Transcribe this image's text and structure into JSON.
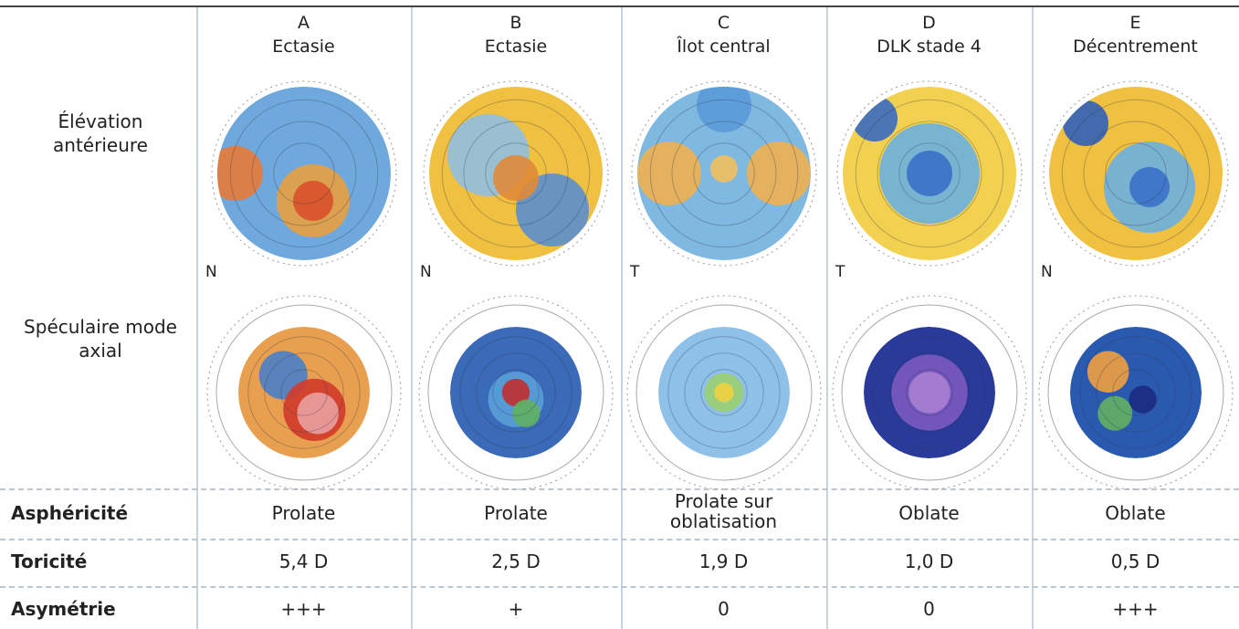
{
  "columns": [
    {
      "letter": "A",
      "title": "Ectasie"
    },
    {
      "letter": "B",
      "title": "Ectasie"
    },
    {
      "letter": "C",
      "title": "Îlot central"
    },
    {
      "letter": "D",
      "title": "DLK stade 4"
    },
    {
      "letter": "E",
      "title": "Décentrement"
    }
  ],
  "row_labels": {
    "elevation": "Élévation antérieure",
    "specular": "Spéculaire mode axial"
  },
  "orientation": [
    "N",
    "N",
    "T",
    "T",
    "N"
  ],
  "table": {
    "rows": [
      {
        "label": "Asphéricité",
        "cells": [
          "Prolate",
          "Prolate",
          "Prolate sur oblatisation",
          "Oblate",
          "Oblate"
        ]
      },
      {
        "label": "Toricité",
        "cells": [
          "5,4 D",
          "2,5 D",
          "1,9 D",
          "1,0 D",
          "0,5 D"
        ]
      },
      {
        "label": "Asymétrie",
        "cells": [
          "+++",
          "+",
          "0",
          "0",
          "+++"
        ]
      }
    ]
  }
}
